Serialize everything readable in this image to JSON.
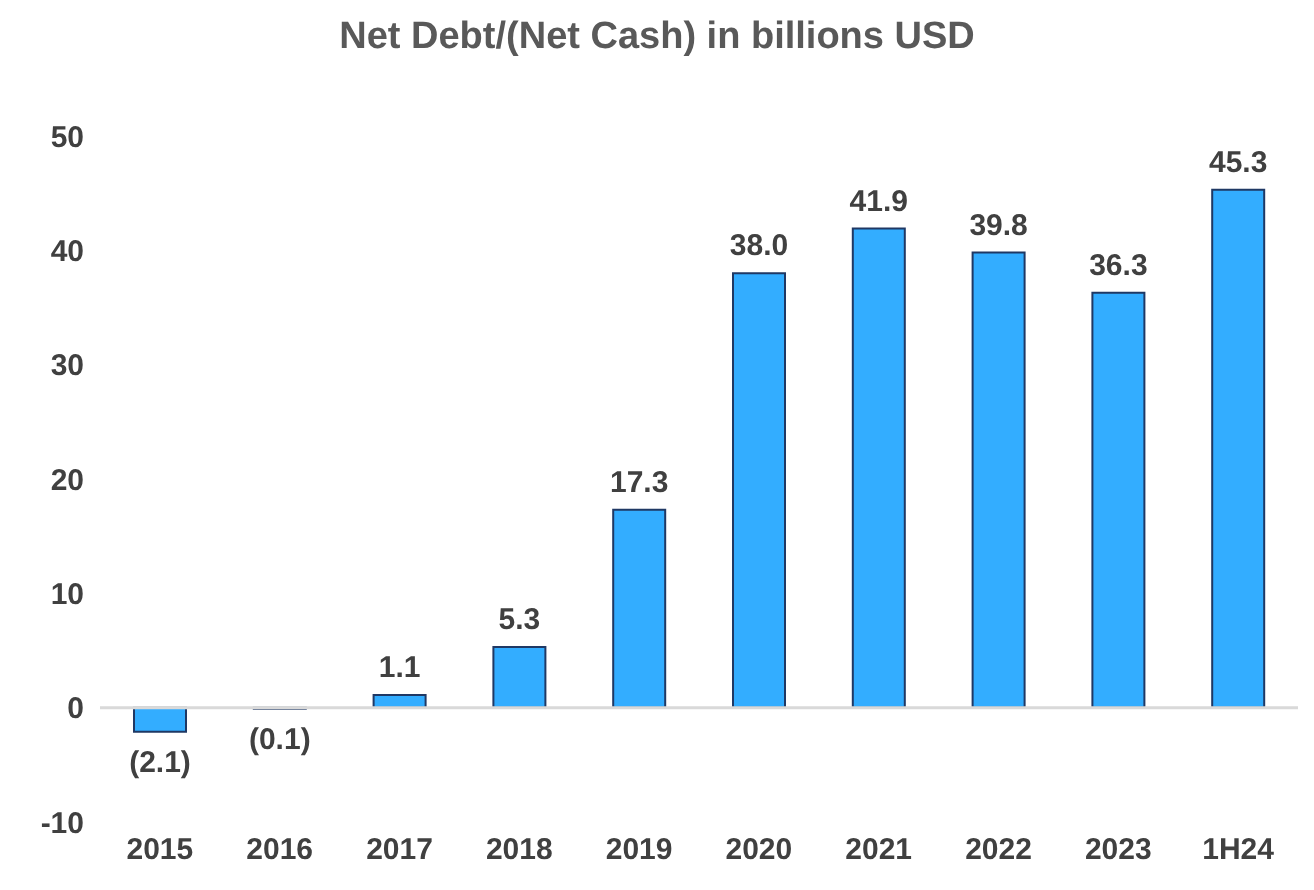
{
  "chart_data": {
    "type": "bar",
    "title": "Net Debt/(Net Cash) in billions USD",
    "categories": [
      "2015",
      "2016",
      "2017",
      "2018",
      "2019",
      "2020",
      "2021",
      "2022",
      "2023",
      "1H24"
    ],
    "values": [
      -2.1,
      -0.1,
      1.1,
      5.3,
      17.3,
      38.0,
      41.9,
      39.8,
      36.3,
      45.3
    ],
    "value_labels": [
      "(2.1)",
      "(0.1)",
      "1.1",
      "5.3",
      "17.3",
      "38.0",
      "41.9",
      "39.8",
      "36.3",
      "45.3"
    ],
    "color": "#33adff",
    "ylim": [
      -10,
      50
    ],
    "yticks": [
      -10,
      0,
      10,
      20,
      30,
      40,
      50
    ],
    "legend": false
  }
}
